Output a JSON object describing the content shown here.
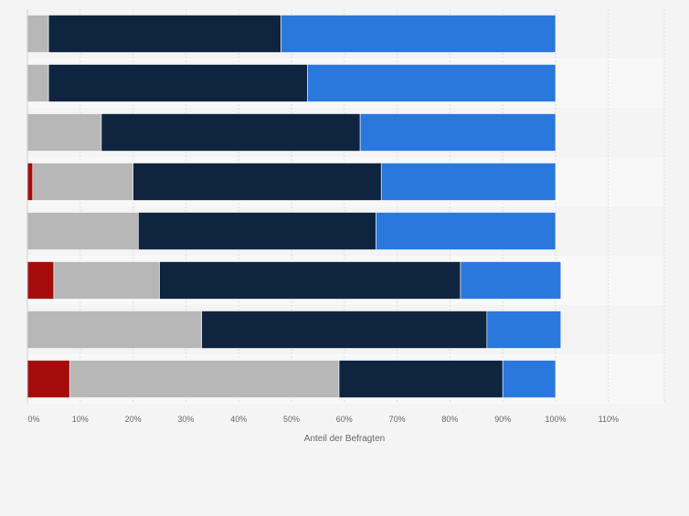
{
  "chart_data": {
    "type": "bar",
    "orientation": "horizontal",
    "stacked": true,
    "categories": [
      "",
      "",
      "",
      "",
      "",
      "",
      "",
      ""
    ],
    "series": [
      {
        "color": "#a50d0d",
        "values": [
          0,
          0,
          0,
          1,
          0,
          5,
          0,
          8
        ]
      },
      {
        "color": "#b7b7b7",
        "values": [
          4,
          4,
          14,
          19,
          21,
          20,
          33,
          51
        ]
      },
      {
        "color": "#0f253f",
        "values": [
          44,
          49,
          49,
          47,
          45,
          57,
          54,
          31
        ]
      },
      {
        "color": "#2a78dd",
        "values": [
          52,
          47,
          37,
          33,
          34,
          19,
          14,
          10
        ]
      }
    ],
    "x_ticks": [
      "0%",
      "10%",
      "20%",
      "30%",
      "40%",
      "50%",
      "60%",
      "70%",
      "80%",
      "90%",
      "100%",
      "110%"
    ],
    "xlim": [
      0,
      120
    ],
    "xlabel": "Anteil der Befragten",
    "grid": true,
    "legend": "none"
  }
}
